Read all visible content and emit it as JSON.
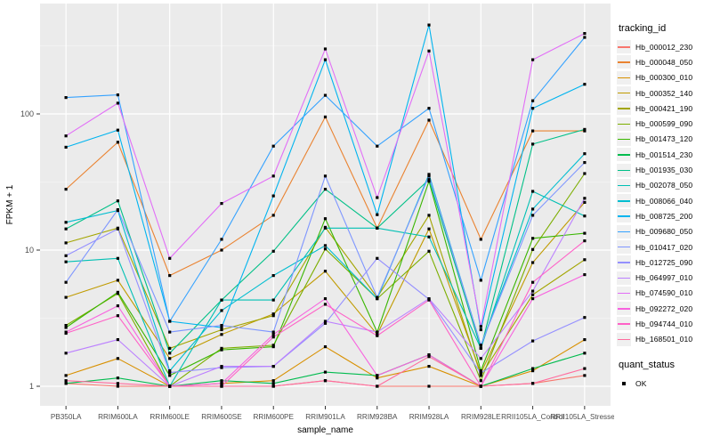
{
  "chart_data": {
    "type": "line",
    "title": "",
    "xlabel": "sample_name",
    "ylabel": "FPKM + 1",
    "y_scale": "log10",
    "y_ticks": [
      1,
      10,
      100
    ],
    "ylim": [
      0.68,
      660
    ],
    "grid": "on",
    "legend_position": "right",
    "panel_bg": "#EBEBEB",
    "grid_color": "#FFFFFF",
    "tick_label_color": "#4D4D4D",
    "point_color": "#000000",
    "categories": [
      "PB350LA",
      "RRIM600LA",
      "RRIM600LE",
      "RRIM600SE",
      "RRIM600PE",
      "RRIM901LA",
      "RRIM928BA",
      "RRIM928LA",
      "RRIM928LE",
      "RRII105LA_Control",
      "RRII105LA_Stressed"
    ],
    "legend": {
      "tracking_id_title": "tracking_id",
      "quant_status_title": "quant_status",
      "quant_status_items": [
        "OK"
      ]
    },
    "series": [
      {
        "name": "Hb_000012_230",
        "color": "#F8766D",
        "values": [
          1.05,
          1.0,
          1.0,
          1.0,
          1.0,
          1.1,
          1.0,
          1.0,
          1.0,
          1.05,
          1.2
        ]
      },
      {
        "name": "Hb_000048_050",
        "color": "#EA8331",
        "values": [
          28,
          62,
          6.5,
          10,
          18,
          95,
          14.5,
          90,
          12,
          75,
          75
        ]
      },
      {
        "name": "Hb_000300_010",
        "color": "#D89000",
        "values": [
          1.2,
          1.6,
          1.0,
          1.05,
          1.1,
          1.95,
          1.15,
          1.4,
          1.0,
          1.3,
          2.2
        ]
      },
      {
        "name": "Hb_000352_140",
        "color": "#C09B00",
        "values": [
          4.5,
          6.0,
          1.6,
          2.4,
          3.4,
          7.0,
          2.4,
          14.3,
          1.25,
          8.1,
          22.4
        ]
      },
      {
        "name": "Hb_000421_190",
        "color": "#A3A500",
        "values": [
          11.3,
          14.5,
          1.9,
          2.6,
          3.3,
          14.7,
          4.5,
          18,
          1.2,
          4.7,
          8.5
        ]
      },
      {
        "name": "Hb_000599_090",
        "color": "#7CAE00",
        "values": [
          2.8,
          4.8,
          1.0,
          1.9,
          2.0,
          10.2,
          4.4,
          9.8,
          1.1,
          10.1,
          36.5
        ]
      },
      {
        "name": "Hb_001473_120",
        "color": "#39B600",
        "values": [
          2.7,
          4.9,
          1.2,
          1.85,
          1.95,
          17,
          2.5,
          32,
          1.3,
          12.2,
          13.3
        ]
      },
      {
        "name": "Hb_001514_230",
        "color": "#00BB4E",
        "values": [
          1.05,
          1.15,
          1.0,
          1.1,
          1.05,
          1.27,
          1.2,
          1.7,
          1.0,
          1.35,
          1.75
        ]
      },
      {
        "name": "Hb_001935_030",
        "color": "#00C087",
        "values": [
          14.3,
          23,
          1.75,
          4.3,
          9.8,
          28,
          14.5,
          33,
          1.9,
          60,
          77
        ]
      },
      {
        "name": "Hb_002078_050",
        "color": "#00C0B4",
        "values": [
          8.2,
          8.7,
          1.0,
          4.3,
          4.3,
          14.5,
          14.5,
          12.5,
          1.9,
          27,
          17.8
        ]
      },
      {
        "name": "Hb_008066_040",
        "color": "#00BDD0",
        "values": [
          16,
          19.5,
          1.3,
          3.6,
          6.5,
          10.8,
          4.4,
          36,
          2.0,
          20,
          51
        ]
      },
      {
        "name": "Hb_008725_200",
        "color": "#00B4EF",
        "values": [
          57,
          76,
          3.0,
          2.7,
          25,
          250,
          18.2,
          450,
          2.6,
          110,
          165
        ]
      },
      {
        "name": "Hb_009680_050",
        "color": "#35A2FF",
        "values": [
          132,
          138,
          3.0,
          12,
          58,
          137,
          58,
          110,
          6,
          125,
          365
        ]
      },
      {
        "name": "Hb_010417_020",
        "color": "#7E96FF",
        "values": [
          5.8,
          19.8,
          2.5,
          2.8,
          2.5,
          35,
          4.5,
          35,
          2.0,
          18,
          44
        ]
      },
      {
        "name": "Hb_012725_090",
        "color": "#9590FF",
        "values": [
          9.1,
          14.3,
          1.26,
          1.37,
          1.4,
          2.9,
          8.7,
          4.35,
          1.25,
          2.15,
          3.2
        ]
      },
      {
        "name": "Hb_064997_010",
        "color": "#BC81FF",
        "values": [
          1.75,
          2.2,
          1.0,
          1.4,
          1.4,
          3.0,
          2.5,
          4.4,
          1.6,
          5.0,
          24
        ]
      },
      {
        "name": "Hb_074590_010",
        "color": "#E26EF7",
        "values": [
          69,
          120,
          8.7,
          22,
          35,
          300,
          24.3,
          290,
          2.75,
          250,
          390
        ]
      },
      {
        "name": "Hb_092272_020",
        "color": "#F863DF",
        "values": [
          2.5,
          3.9,
          1.0,
          1.05,
          2.4,
          4.4,
          1.2,
          1.7,
          1.0,
          4.4,
          6.6
        ]
      },
      {
        "name": "Hb_094744_010",
        "color": "#FF61C7",
        "values": [
          2.45,
          3.3,
          1.0,
          1.0,
          2.3,
          4.0,
          2.35,
          4.3,
          1.0,
          5.8,
          11.7
        ]
      },
      {
        "name": "Hb_168501_010",
        "color": "#FF6C9E",
        "values": [
          1.1,
          1.05,
          1.0,
          1.0,
          1.0,
          1.1,
          1.0,
          1.65,
          1.0,
          1.05,
          1.35
        ]
      }
    ]
  }
}
